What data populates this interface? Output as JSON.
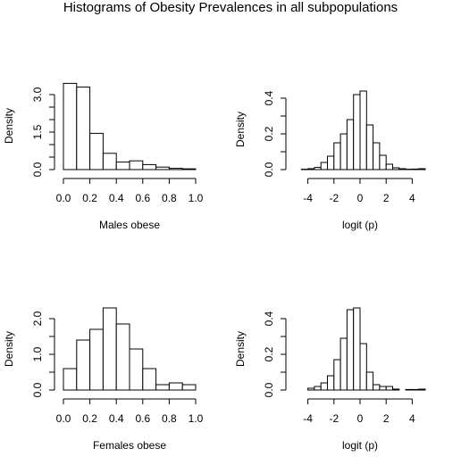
{
  "figure": {
    "title": "Histograms of Obesity Prevalences in all subpopulations"
  },
  "chart_data": [
    {
      "type": "bar",
      "panel": "top-left",
      "xlabel": "Males obese",
      "ylabel": "Density",
      "bin_edges": [
        0.0,
        0.1,
        0.2,
        0.3,
        0.4,
        0.5,
        0.6,
        0.7,
        0.8,
        0.9,
        1.0
      ],
      "values": [
        3.45,
        3.3,
        1.45,
        0.65,
        0.3,
        0.35,
        0.2,
        0.1,
        0.05,
        0.03
      ],
      "xlim": [
        0.0,
        1.0
      ],
      "ylim": [
        0,
        3.5
      ],
      "xticks": [
        0.0,
        0.2,
        0.4,
        0.6,
        0.8,
        1.0
      ],
      "xtick_labels": [
        "0.0",
        "0.2",
        "0.4",
        "0.6",
        "0.8",
        "1.0"
      ],
      "yticks": [
        0.0,
        0.5,
        1.0,
        1.5,
        2.0,
        2.5,
        3.0
      ],
      "ytick_labels": [
        "0.0",
        "",
        "",
        "1.5",
        "",
        "",
        "3.0"
      ]
    },
    {
      "type": "bar",
      "panel": "top-right",
      "xlabel": "logit (p)",
      "ylabel": "Density",
      "bin_edges": [
        -5.0,
        -4.5,
        -4.0,
        -3.5,
        -3.0,
        -2.5,
        -2.0,
        -1.5,
        -1.0,
        -0.5,
        0.0,
        0.5,
        1.0,
        1.5,
        2.0,
        2.5,
        3.0,
        3.5,
        4.0,
        4.5,
        5.0
      ],
      "values": [
        0.0,
        0.002,
        0.005,
        0.012,
        0.04,
        0.075,
        0.15,
        0.2,
        0.28,
        0.42,
        0.44,
        0.25,
        0.15,
        0.08,
        0.03,
        0.01,
        0.005,
        0.002,
        0.003,
        0.005
      ],
      "xlim": [
        -5,
        5
      ],
      "ylim": [
        0,
        0.45
      ],
      "xticks": [
        -4,
        -2,
        0,
        2,
        4
      ],
      "xtick_labels": [
        "-4",
        "-2",
        "0",
        "2",
        "4"
      ],
      "yticks": [
        0.0,
        0.1,
        0.2,
        0.3,
        0.4
      ],
      "ytick_labels": [
        "0.0",
        "",
        "0.2",
        "",
        "0.4"
      ]
    },
    {
      "type": "bar",
      "panel": "bottom-left",
      "xlabel": "Females obese",
      "ylabel": "Density",
      "bin_edges": [
        0.0,
        0.1,
        0.2,
        0.3,
        0.4,
        0.5,
        0.6,
        0.7,
        0.8,
        0.9,
        1.0
      ],
      "values": [
        0.6,
        1.4,
        1.7,
        2.3,
        1.85,
        1.15,
        0.6,
        0.15,
        0.2,
        0.15
      ],
      "xlim": [
        0.0,
        1.0
      ],
      "ylim": [
        0,
        2.3
      ],
      "xticks": [
        0.0,
        0.2,
        0.4,
        0.6,
        0.8,
        1.0
      ],
      "xtick_labels": [
        "0.0",
        "0.2",
        "0.4",
        "0.6",
        "0.8",
        "1.0"
      ],
      "yticks": [
        0.0,
        0.5,
        1.0,
        1.5,
        2.0
      ],
      "ytick_labels": [
        "0.0",
        "",
        "1.0",
        "",
        "2.0"
      ]
    },
    {
      "type": "bar",
      "panel": "bottom-right",
      "xlabel": "logit (p)",
      "ylabel": "Density",
      "bin_edges": [
        -4.5,
        -4.0,
        -3.5,
        -3.0,
        -2.5,
        -2.0,
        -1.5,
        -1.0,
        -0.5,
        0.0,
        0.5,
        1.0,
        1.5,
        2.0,
        2.5,
        3.0,
        3.5,
        4.0,
        4.5,
        5.0
      ],
      "values": [
        0.0,
        0.01,
        0.02,
        0.04,
        0.08,
        0.17,
        0.29,
        0.45,
        0.46,
        0.26,
        0.1,
        0.03,
        0.02,
        0.02,
        0.005,
        0.0,
        0.003,
        0.003,
        0.005
      ],
      "xlim": [
        -5,
        5
      ],
      "ylim": [
        0,
        0.46
      ],
      "xticks": [
        -4,
        -2,
        0,
        2,
        4
      ],
      "xtick_labels": [
        "-4",
        "-2",
        "0",
        "2",
        "4"
      ],
      "yticks": [
        0.0,
        0.1,
        0.2,
        0.3,
        0.4
      ],
      "ytick_labels": [
        "0.0",
        "",
        "0.2",
        "",
        "0.4"
      ]
    }
  ]
}
